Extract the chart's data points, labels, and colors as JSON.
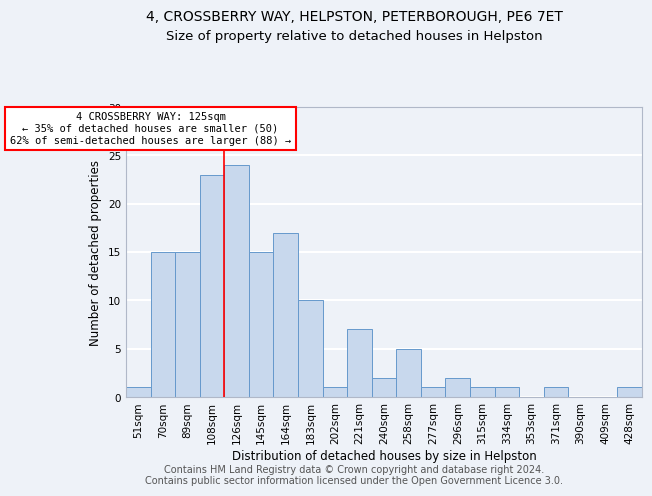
{
  "title1": "4, CROSSBERRY WAY, HELPSTON, PETERBOROUGH, PE6 7ET",
  "title2": "Size of property relative to detached houses in Helpston",
  "xlabel": "Distribution of detached houses by size in Helpston",
  "ylabel": "Number of detached properties",
  "bin_labels": [
    "51sqm",
    "70sqm",
    "89sqm",
    "108sqm",
    "126sqm",
    "145sqm",
    "164sqm",
    "183sqm",
    "202sqm",
    "221sqm",
    "240sqm",
    "258sqm",
    "277sqm",
    "296sqm",
    "315sqm",
    "334sqm",
    "353sqm",
    "371sqm",
    "390sqm",
    "409sqm",
    "428sqm"
  ],
  "bar_heights": [
    1,
    15,
    15,
    23,
    24,
    15,
    17,
    10,
    1,
    7,
    2,
    5,
    1,
    2,
    1,
    1,
    0,
    1,
    0,
    0,
    1
  ],
  "bar_color": "#c8d8ed",
  "bar_edge_color": "#6699cc",
  "red_line_x": 3.5,
  "annotation_line1": "4 CROSSBERRY WAY: 125sqm",
  "annotation_line2": "← 35% of detached houses are smaller (50)",
  "annotation_line3": "62% of semi-detached houses are larger (88) →",
  "ylim": [
    0,
    30
  ],
  "yticks": [
    0,
    5,
    10,
    15,
    20,
    25,
    30
  ],
  "footer1": "Contains HM Land Registry data © Crown copyright and database right 2024.",
  "footer2": "Contains public sector information licensed under the Open Government Licence 3.0.",
  "background_color": "#eef2f8",
  "grid_color": "white",
  "title1_fontsize": 10,
  "title2_fontsize": 9.5,
  "axis_fontsize": 8,
  "tick_fontsize": 7.5,
  "footer_fontsize": 7
}
